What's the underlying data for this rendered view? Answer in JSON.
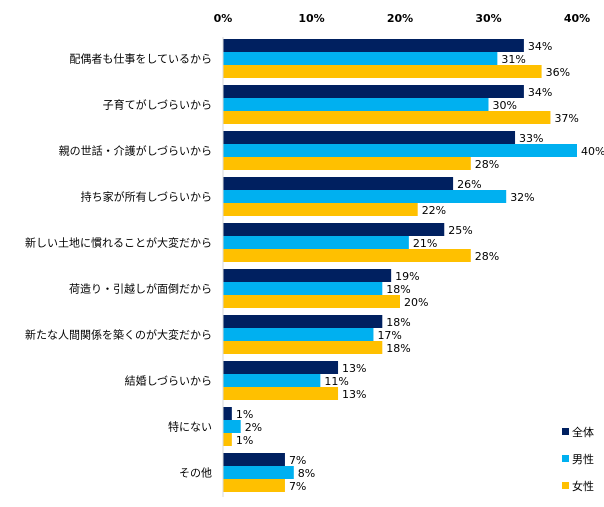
{
  "chart_data": {
    "type": "bar",
    "orientation": "horizontal",
    "xlim": [
      0,
      40
    ],
    "ticks": [
      "0%",
      "10%",
      "20%",
      "30%",
      "40%"
    ],
    "tick_values": [
      0,
      10,
      20,
      30,
      40
    ],
    "grid": false,
    "legend_placement": "bottom-right",
    "categories": [
      "配偶者も仕事をしているから",
      "子育てがしづらいから",
      "親の世話・介護がしづらいから",
      "持ち家が所有しづらいから",
      "新しい土地に慣れることが大変だから",
      "荷造り・引越しが面倒だから",
      "新たな人間関係を築くのが大変だから",
      "結婚しづらいから",
      "特にない",
      "その他"
    ],
    "series": [
      {
        "name": "全体",
        "color": "#002060",
        "values": [
          34,
          34,
          33,
          26,
          25,
          19,
          18,
          13,
          1,
          7
        ]
      },
      {
        "name": "男性",
        "color": "#00B0F0",
        "values": [
          31,
          30,
          40,
          32,
          21,
          18,
          17,
          11,
          2,
          8
        ]
      },
      {
        "name": "女性",
        "color": "#FFC000",
        "values": [
          36,
          37,
          28,
          22,
          28,
          20,
          18,
          13,
          1,
          7
        ]
      }
    ],
    "value_suffix": "%"
  }
}
